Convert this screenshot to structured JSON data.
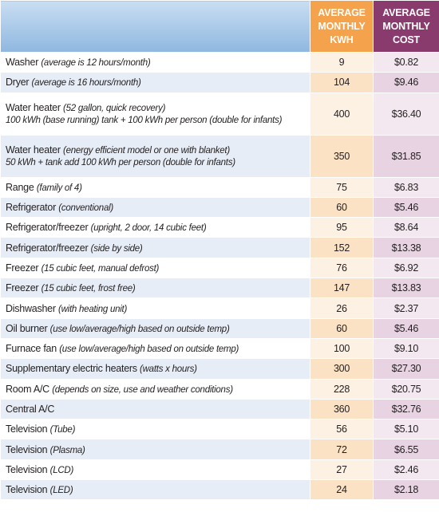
{
  "table": {
    "header": [
      "AVERAGE MONTHLY KWH",
      "AVERAGE MONTHLY COST"
    ],
    "rows": [
      {
        "label": "Washer",
        "note": "(average is 12 hours/month)",
        "kwh": "9",
        "cost": "$0.82"
      },
      {
        "label": "Dryer",
        "note": "(average is 16 hours/month)",
        "kwh": "104",
        "cost": "$9.46"
      },
      {
        "label": "Water heater",
        "note": "(52 gallon, quick recovery)",
        "detail": "100 kWh (base running) tank + 100 kWh per person (double for infants)",
        "kwh": "400",
        "cost": "$36.40"
      },
      {
        "label": "Water heater",
        "note": "(energy efficient model or one with blanket)",
        "detail": "50 kWh + tank add 100 kWh per person (double for infants)",
        "kwh": "350",
        "cost": "$31.85"
      },
      {
        "label": "Range",
        "note": "(family of 4)",
        "kwh": "75",
        "cost": "$6.83"
      },
      {
        "label": "Refrigerator",
        "note": "(conventional)",
        "kwh": "60",
        "cost": "$5.46"
      },
      {
        "label": "Refrigerator/freezer",
        "note": "(upright, 2 door, 14 cubic feet)",
        "kwh": "95",
        "cost": "$8.64"
      },
      {
        "label": "Refrigerator/freezer",
        "note": "(side by side)",
        "kwh": "152",
        "cost": "$13.38"
      },
      {
        "label": "Freezer",
        "note": "(15 cubic feet, manual defrost)",
        "kwh": "76",
        "cost": "$6.92"
      },
      {
        "label": "Freezer",
        "note": "(15 cubic feet, frost free)",
        "kwh": "147",
        "cost": "$13.83"
      },
      {
        "label": "Dishwasher",
        "note": "(with heating unit)",
        "kwh": "26",
        "cost": "$2.37"
      },
      {
        "label": "Oil burner",
        "note": "(use low/average/high based on outside temp)",
        "kwh": "60",
        "cost": "$5.46"
      },
      {
        "label": "Furnace fan",
        "note": "(use low/average/high based on outside temp)",
        "kwh": "100",
        "cost": "$9.10"
      },
      {
        "label": "Supplementary electric heaters",
        "note": "(watts x hours)",
        "kwh": "300",
        "cost": "$27.30"
      },
      {
        "label": "Room A/C",
        "note": "(depends on size, use and weather conditions)",
        "kwh": "228",
        "cost": "$20.75"
      },
      {
        "label": "Central A/C",
        "kwh": "360",
        "cost": "$32.76"
      },
      {
        "label": "Television",
        "note": "(Tube)",
        "kwh": "56",
        "cost": "$5.10"
      },
      {
        "label": "Television",
        "note": "(Plasma)",
        "kwh": "72",
        "cost": "$6.55"
      },
      {
        "label": "Television",
        "note": "(LCD)",
        "kwh": "27",
        "cost": "$2.46"
      },
      {
        "label": "Television",
        "note": "(LED)",
        "kwh": "24",
        "cost": "$2.18"
      }
    ]
  }
}
